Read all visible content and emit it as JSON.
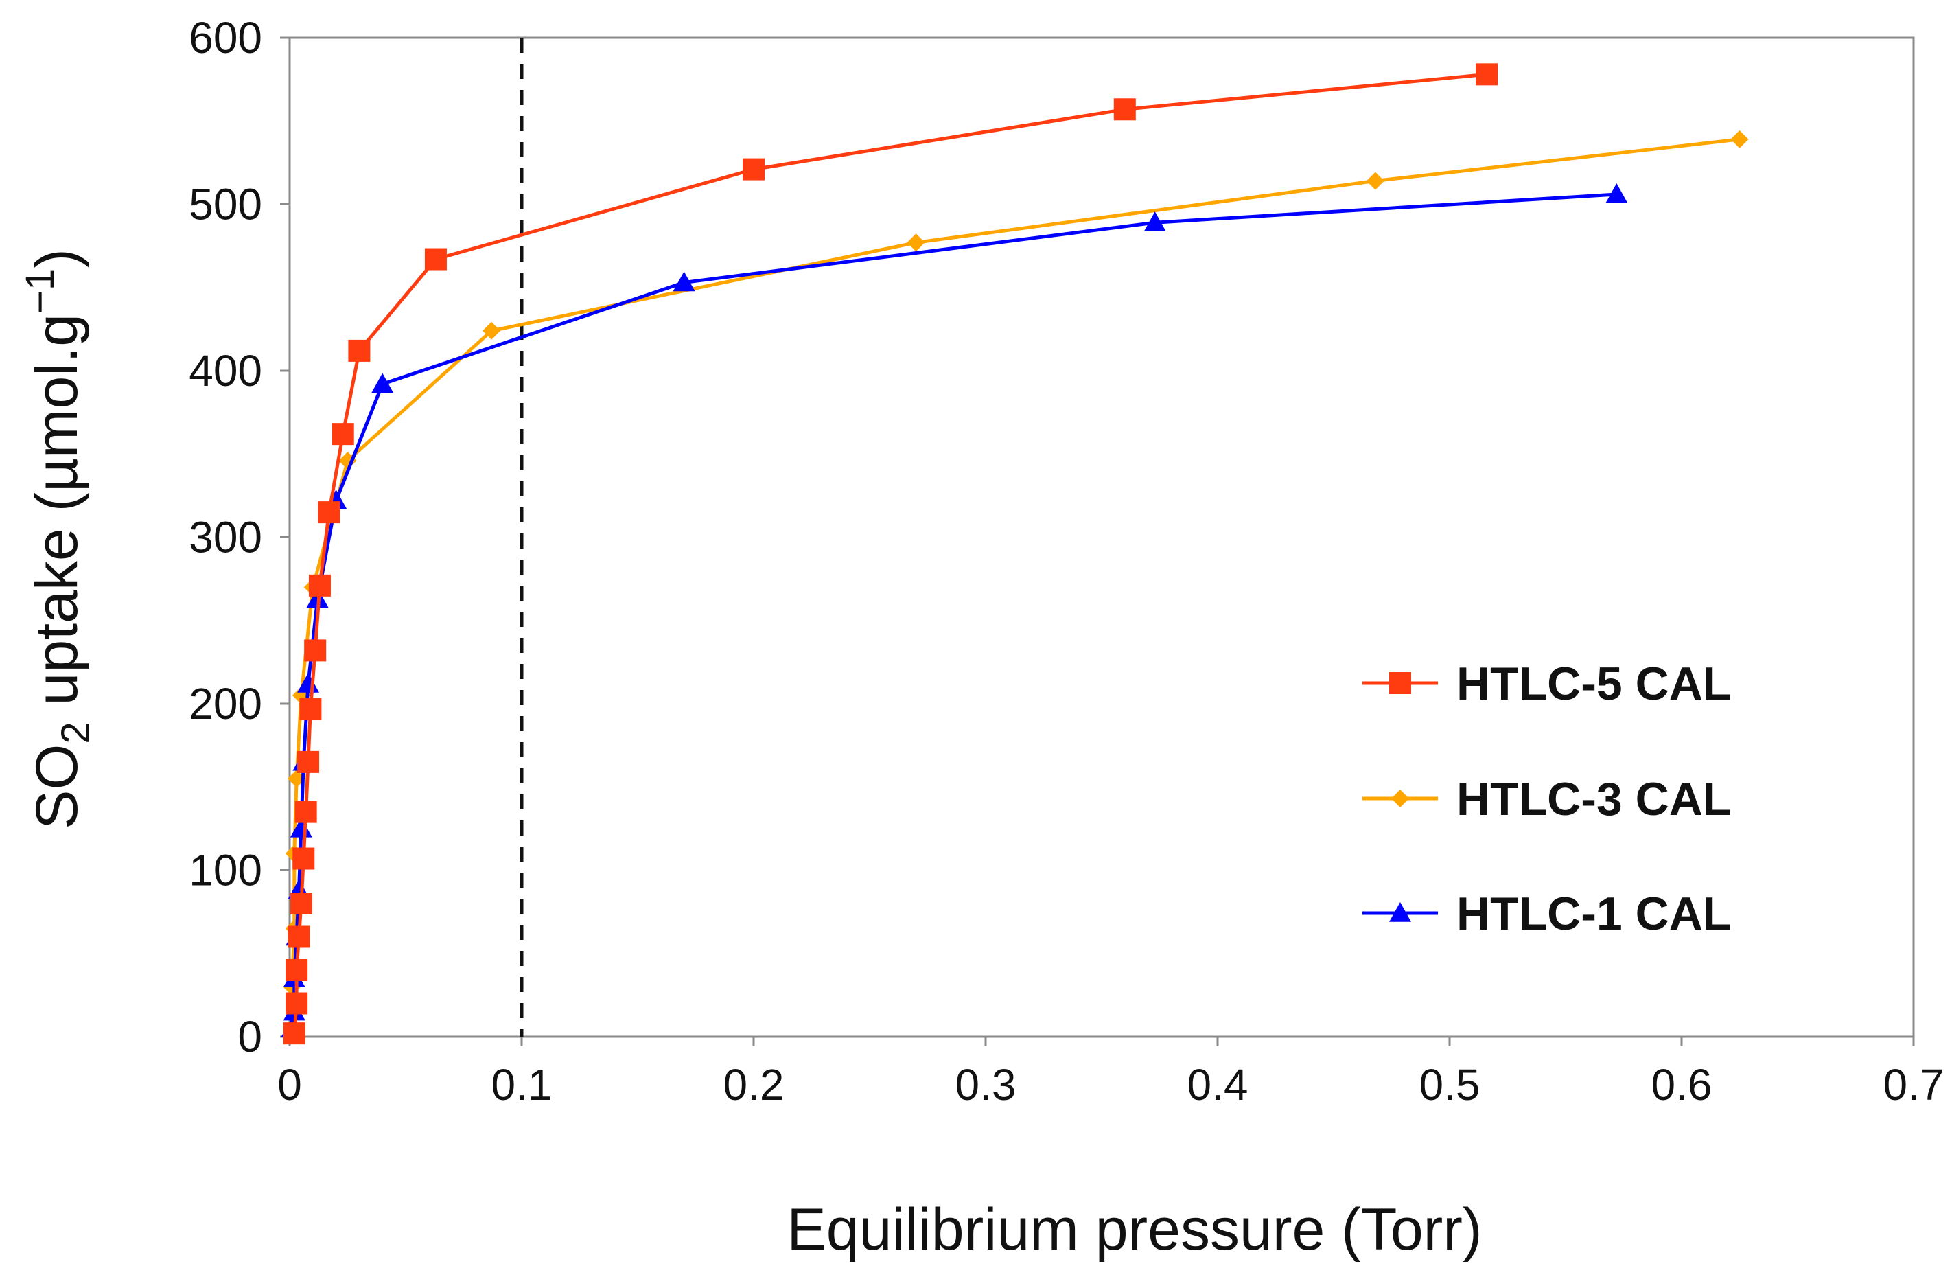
{
  "chart_data": {
    "type": "line",
    "title": "",
    "xlabel": "Equilibrium pressure (Torr)",
    "ylabel": {
      "prefix": "SO",
      "subscript": "2",
      "middle": " uptake (µmol.g",
      "superscript": "−1",
      "suffix": ")"
    },
    "xlim": [
      0,
      0.7
    ],
    "ylim": [
      0,
      600
    ],
    "x_ticks": [
      "0",
      "0.1",
      "0.2",
      "0.3",
      "0.4",
      "0.5",
      "0.6",
      "0.7"
    ],
    "y_ticks": [
      "0",
      "100",
      "200",
      "300",
      "400",
      "500",
      "600"
    ],
    "x_tick_values": [
      0,
      0.1,
      0.2,
      0.3,
      0.4,
      0.5,
      0.6,
      0.7
    ],
    "y_tick_values": [
      0,
      100,
      200,
      300,
      400,
      500,
      600
    ],
    "reference_line": {
      "x": 0.1,
      "style": "dashed"
    },
    "legend_position": "center-right",
    "series": [
      {
        "name": "HTLC-5 CAL",
        "color": "#ff3b10",
        "marker": "square",
        "x": [
          0.002,
          0.003,
          0.003,
          0.004,
          0.005,
          0.006,
          0.007,
          0.008,
          0.009,
          0.011,
          0.013,
          0.017,
          0.023,
          0.03,
          0.063,
          0.2,
          0.36,
          0.516
        ],
        "y": [
          2,
          20,
          40,
          60,
          80,
          107,
          135,
          165,
          197,
          232,
          271,
          315,
          362,
          412,
          467,
          521,
          557,
          578
        ]
      },
      {
        "name": "HTLC-3 CAL",
        "color": "#ffa500",
        "marker": "diamond",
        "x": [
          0.001,
          0.001,
          0.002,
          0.002,
          0.003,
          0.005,
          0.01,
          0.025,
          0.087,
          0.27,
          0.468,
          0.625
        ],
        "y": [
          5,
          30,
          65,
          110,
          155,
          205,
          270,
          346,
          424,
          477,
          514,
          539
        ]
      },
      {
        "name": "HTLC-1 CAL",
        "color": "#0000ff",
        "marker": "triangle",
        "x": [
          0.001,
          0.002,
          0.002,
          0.003,
          0.004,
          0.005,
          0.006,
          0.008,
          0.012,
          0.02,
          0.04,
          0.17,
          0.373,
          0.572
        ],
        "y": [
          5,
          15,
          35,
          60,
          88,
          125,
          165,
          212,
          263,
          322,
          392,
          453,
          489,
          506
        ]
      }
    ]
  }
}
